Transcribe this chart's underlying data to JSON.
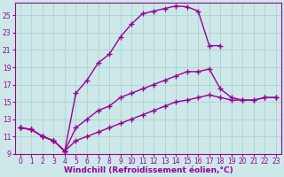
{
  "background_color": "#cce8e8",
  "grid_color": "#aacccc",
  "line_color": "#990099",
  "marker": "+",
  "markersize": 5,
  "linewidth": 1.0,
  "xlim": [
    -0.5,
    23.5
  ],
  "ylim": [
    9,
    26.5
  ],
  "xlabel": "Windchill (Refroidissement éolien,°C)",
  "xlabel_fontsize": 6.5,
  "xtick_labels": [
    "0",
    "1",
    "2",
    "3",
    "4",
    "5",
    "6",
    "7",
    "8",
    "9",
    "10",
    "11",
    "12",
    "13",
    "14",
    "15",
    "16",
    "17",
    "18",
    "19",
    "20",
    "21",
    "22",
    "23"
  ],
  "ytick_labels": [
    "9",
    "11",
    "13",
    "15",
    "17",
    "19",
    "21",
    "23",
    "25"
  ],
  "ytick_vals": [
    9,
    11,
    13,
    15,
    17,
    19,
    21,
    23,
    25
  ],
  "tick_fontsize": 5.5,
  "series": [
    {
      "x": [
        0,
        1,
        2,
        3,
        4,
        5,
        6,
        7,
        8,
        9,
        10,
        11,
        12,
        13,
        14,
        15,
        16,
        17,
        18
      ],
      "y": [
        12,
        11.8,
        11,
        10.5,
        9.3,
        16,
        17.5,
        19.5,
        20.5,
        22.5,
        24,
        25.2,
        25.5,
        25.8,
        26.1,
        26.0,
        25.5,
        21.5,
        21.5
      ]
    },
    {
      "x": [
        0,
        1,
        2,
        3,
        4,
        5,
        6,
        7,
        8,
        9,
        10,
        11,
        12,
        13,
        14,
        15,
        16,
        17,
        18,
        19,
        20,
        21,
        22,
        23
      ],
      "y": [
        12,
        11.8,
        11,
        10.5,
        9.3,
        12.0,
        13.0,
        14.0,
        14.5,
        15.5,
        16.0,
        16.5,
        17.0,
        17.5,
        18.0,
        18.5,
        18.5,
        18.8,
        16.5,
        15.5,
        15.2,
        15.2,
        15.5,
        15.5
      ]
    },
    {
      "x": [
        0,
        1,
        2,
        3,
        4,
        5,
        6,
        7,
        8,
        9,
        10,
        11,
        12,
        13,
        14,
        15,
        16,
        17,
        18,
        19,
        20,
        21,
        22,
        23
      ],
      "y": [
        12,
        11.8,
        11,
        10.5,
        9.3,
        10.5,
        11.0,
        11.5,
        12.0,
        12.5,
        13.0,
        13.5,
        14.0,
        14.5,
        15.0,
        15.2,
        15.5,
        15.8,
        15.5,
        15.2,
        15.2,
        15.2,
        15.5,
        15.5
      ]
    }
  ]
}
